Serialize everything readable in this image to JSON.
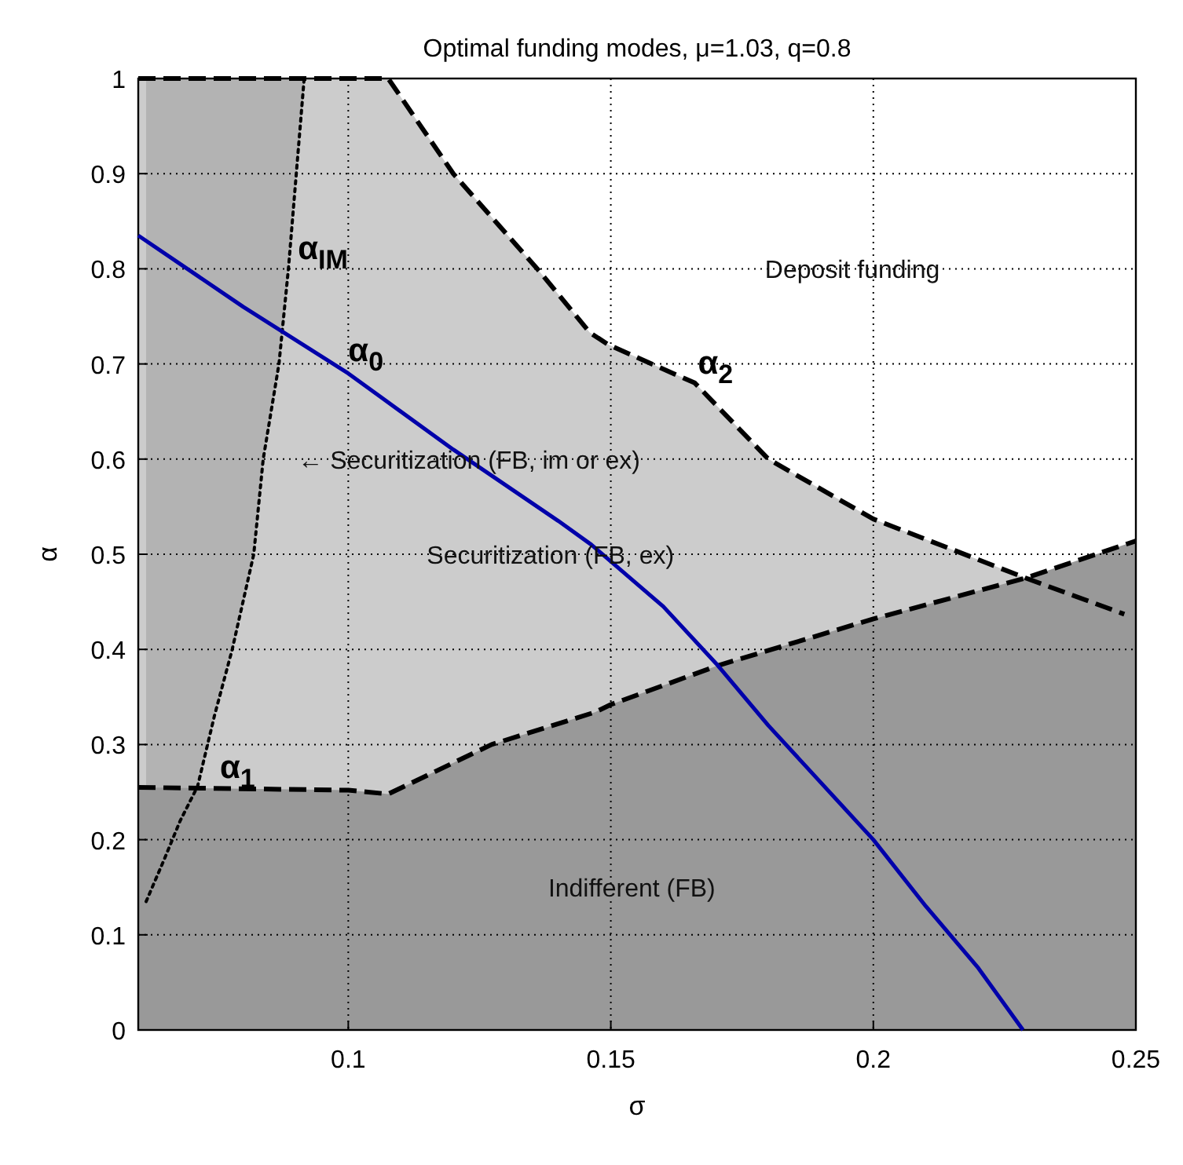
{
  "chart_data": {
    "type": "line",
    "title": "Optimal funding modes, μ=1.03, q=0.8",
    "xlabel": "σ",
    "ylabel": "α",
    "xlim": [
      0.06,
      0.25
    ],
    "ylim": [
      0,
      1
    ],
    "xticks": [
      0.1,
      0.15,
      0.2,
      0.25
    ],
    "yticks": [
      0,
      0.1,
      0.2,
      0.3,
      0.4,
      0.5,
      0.6,
      0.7,
      0.8,
      0.9,
      1
    ],
    "grid": true,
    "series": [
      {
        "type": "area",
        "name": "α$_{2}$",
        "color": "#cccccc",
        "line_style": "dashed",
        "x": [
          0.06,
          0.1076,
          0.12,
          0.136,
          0.146,
          0.1496,
          0.166,
          0.18,
          0.2,
          0.215,
          0.229,
          0.2478
        ],
        "values": [
          1,
          1,
          0.9,
          0.8,
          0.733,
          0.72,
          0.68,
          0.6,
          0.537,
          0.505,
          0.475,
          0.437
        ]
      },
      {
        "name": "α$_{IM}$",
        "color": "#000000",
        "line_style": "dotted",
        "x": [
          0.0615,
          0.065,
          0.068,
          0.0713,
          0.0745,
          0.0779,
          0.082,
          0.0838,
          0.0868,
          0.0886,
          0.0901,
          0.0916
        ],
        "values": [
          0.135,
          0.18,
          0.22,
          0.256,
          0.33,
          0.4,
          0.5,
          0.6,
          0.7,
          0.8,
          0.9,
          1
        ],
        "lower": [
          0.135,
          0.18,
          0.22,
          0.256,
          0.33,
          0.4,
          0.5,
          0.6,
          0.7,
          0.8,
          0.9,
          1
        ],
        "upper": [
          1,
          1,
          1,
          1,
          1,
          1,
          1,
          1,
          1,
          1,
          1,
          1
        ]
      },
      {
        "type": "area",
        "name": "α$_{1}$",
        "color": "#999999",
        "line_style": "dashed",
        "x": [
          0.06,
          0.1,
          0.1076,
          0.1273,
          0.147,
          0.15,
          0.1704,
          0.2,
          0.229,
          0.25
        ],
        "values": [
          0.255,
          0.252,
          0.248,
          0.3,
          0.334,
          0.342,
          0.383,
          0.432,
          0.475,
          0.514
        ]
      },
      {
        "name": "α$_{0}$",
        "color": "#0000aa",
        "line_style": "solid",
        "x": [
          0.06,
          0.08,
          0.1,
          0.12,
          0.14,
          0.1463,
          0.16,
          0.1704,
          0.18,
          0.19,
          0.2,
          0.21,
          0.22,
          0.2285
        ],
        "values": [
          0.835,
          0.76,
          0.69,
          0.61,
          0.535,
          0.51,
          0.445,
          0.383,
          0.32,
          0.26,
          0.2,
          0.13,
          0.065,
          0
        ]
      }
    ],
    "annotations": [
      "Deposit funding",
      "← Securitization (FB, im or ex)",
      "Securitization (FB, ex)",
      "Indifferent (FB)"
    ]
  }
}
